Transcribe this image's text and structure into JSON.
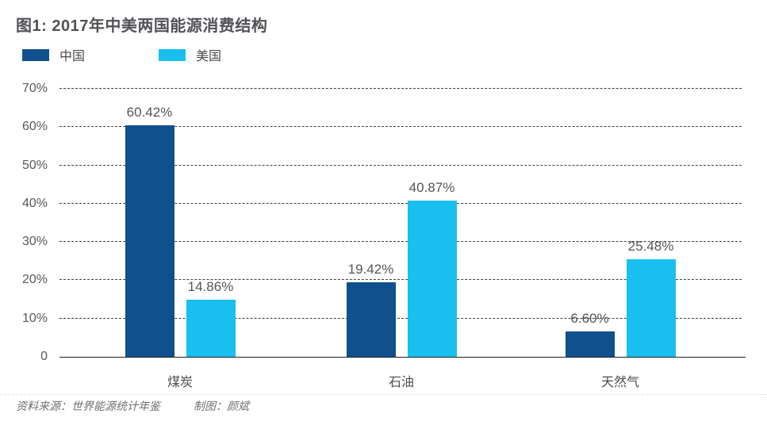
{
  "title": "图1: 2017年中美两国能源消费结构",
  "legend": [
    {
      "label": "中国",
      "color": "#10508C"
    },
    {
      "label": "美国",
      "color": "#18BFEF"
    }
  ],
  "footer": {
    "source": "资料来源：世界能源统计年鉴",
    "credit": "制图：颜斌"
  },
  "chart_data": {
    "type": "bar",
    "title": "图1: 2017年中美两国能源消费结构",
    "categories": [
      "煤炭",
      "石油",
      "天然气"
    ],
    "series": [
      {
        "name": "中国",
        "color": "#10508C",
        "values": [
          60.42,
          19.42,
          6.6
        ],
        "labels": [
          "60.42%",
          "19.42%",
          "6.60%"
        ]
      },
      {
        "name": "美国",
        "color": "#18BFEF",
        "values": [
          14.86,
          40.87,
          25.48
        ],
        "labels": [
          "14.86%",
          "40.87%",
          "25.48%"
        ]
      }
    ],
    "xlabel": "",
    "ylabel": "",
    "ylim": [
      0,
      70
    ],
    "ytick_step": 10,
    "ytick_labels": [
      "0",
      "10%",
      "20%",
      "30%",
      "40%",
      "50%",
      "60%",
      "70%"
    ],
    "grid": "horizontal-dashed",
    "legend_position": "top-left",
    "value_labels": "above-bars"
  }
}
